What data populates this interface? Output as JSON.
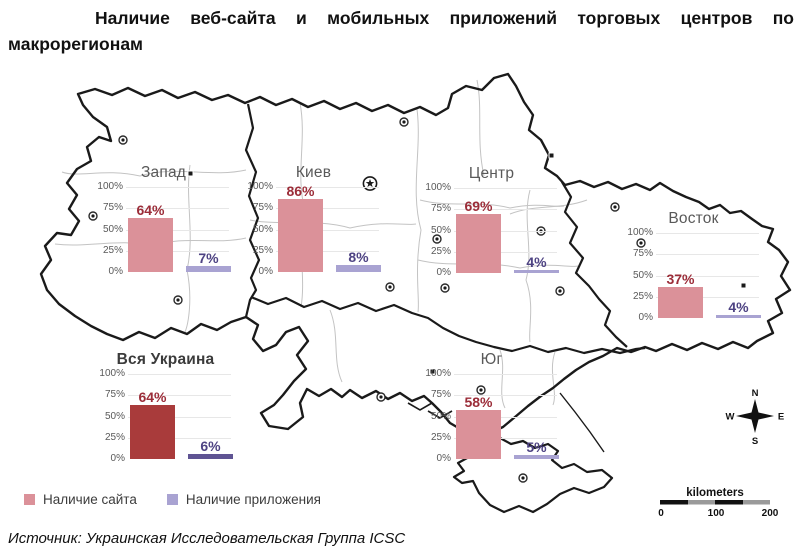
{
  "title": "Наличие веб-сайта и мобильных приложений торговых центров по макрорегионам",
  "source": "Источник: Украинская Исследовательская Группа ICSC",
  "legend": {
    "site": {
      "label": "Наличие сайта",
      "color": "#DB9199"
    },
    "app": {
      "label": "Наличие приложения",
      "color": "#A9A3D2"
    }
  },
  "map": {
    "compass": {
      "n": "N",
      "e": "E",
      "s": "S",
      "w": "W"
    },
    "scalebar": {
      "label": "kilometers",
      "ticks": [
        "0",
        "100",
        "200"
      ]
    }
  },
  "colors": {
    "site_regional": "#DB9199",
    "app_regional": "#A9A3D2",
    "site_total": "#A93B3B",
    "app_total": "#5F5493",
    "site_value_label": "#9B2C38",
    "app_value_label": "#4E4383"
  },
  "chart_data": {
    "type": "bar",
    "title": "Наличие веб-сайта и мобильных приложений торговых центров по макрорегионам",
    "series_names": [
      "Наличие сайта",
      "Наличие приложения"
    ],
    "y_axis_ticks": [
      "100%",
      "75%",
      "50%",
      "25%",
      "0%"
    ],
    "ylim": [
      0,
      100
    ],
    "unit": "%",
    "legend_position": "bottom-left",
    "regions": [
      {
        "name": "Запад",
        "site": 64,
        "app": 7,
        "is_total": false
      },
      {
        "name": "Киев",
        "site": 86,
        "app": 8,
        "is_total": false
      },
      {
        "name": "Центр",
        "site": 69,
        "app": 4,
        "is_total": false
      },
      {
        "name": "Восток",
        "site": 37,
        "app": 4,
        "is_total": false
      },
      {
        "name": "Юг",
        "site": 58,
        "app": 5,
        "is_total": false
      },
      {
        "name": "Вся Украина",
        "site": 64,
        "app": 6,
        "is_total": true
      }
    ]
  }
}
